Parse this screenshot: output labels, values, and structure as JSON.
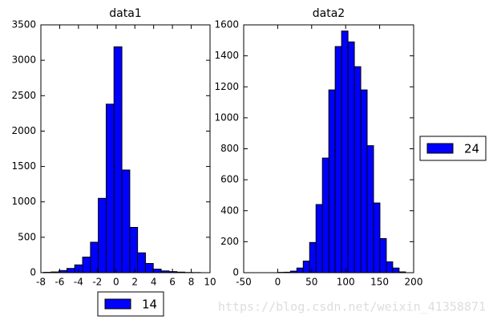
{
  "chart_data": [
    {
      "type": "histogram",
      "title": "data1",
      "bins": [
        -7.74,
        -6.9,
        -6.07,
        -5.23,
        -4.4,
        -3.56,
        -2.72,
        -1.89,
        -1.05,
        -0.22,
        0.62,
        1.46,
        2.29,
        3.13,
        3.96,
        4.8,
        5.64,
        6.47,
        7.31,
        8.14,
        8.98
      ],
      "series": [
        {
          "name": "14",
          "color": "#0000ff",
          "values": [
            5,
            10,
            30,
            60,
            110,
            220,
            430,
            1050,
            2380,
            3190,
            1450,
            640,
            280,
            130,
            50,
            25,
            15,
            8,
            3,
            2
          ]
        }
      ],
      "xlim": [
        -8,
        10
      ],
      "ylim": [
        0,
        3500
      ],
      "xticks": [
        -8,
        -6,
        -4,
        -2,
        0,
        2,
        4,
        6,
        8,
        10
      ],
      "yticks": [
        0,
        500,
        1000,
        1500,
        2000,
        2500,
        3000,
        3500
      ],
      "legend": "below"
    },
    {
      "type": "histogram",
      "title": "data2",
      "bins": [
        0,
        9.4,
        18.8,
        28.2,
        37.6,
        47,
        56.4,
        65.8,
        75.2,
        84.6,
        94,
        103.4,
        112.8,
        122.2,
        131.6,
        141,
        150.4,
        159.8,
        169.2,
        178.6,
        188
      ],
      "series": [
        {
          "name": "24",
          "color": "#0000ff",
          "values": [
            2,
            3,
            10,
            30,
            75,
            195,
            440,
            740,
            1180,
            1460,
            1560,
            1490,
            1330,
            1180,
            820,
            450,
            220,
            70,
            30,
            5
          ]
        }
      ],
      "xlim": [
        -50,
        200
      ],
      "ylim": [
        0,
        1600
      ],
      "xticks": [
        -50,
        0,
        50,
        100,
        150,
        200
      ],
      "yticks": [
        0,
        200,
        400,
        600,
        800,
        1000,
        1200,
        1400,
        1600
      ],
      "legend": "right"
    }
  ],
  "watermark": "https://blog.csdn.net/weixin_41358871"
}
